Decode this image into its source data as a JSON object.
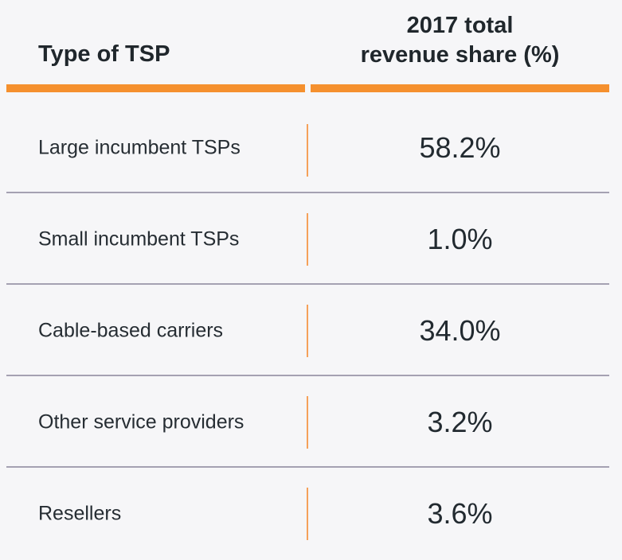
{
  "header": {
    "col1": "Type of TSP",
    "col2_line1": "2017 total",
    "col2_line2": "revenue share (%)"
  },
  "rows": [
    {
      "label": "Large incumbent TSPs",
      "value": "58.2%"
    },
    {
      "label": "Small incumbent TSPs",
      "value": "1.0%"
    },
    {
      "label": "Cable-based carriers",
      "value": "34.0%"
    },
    {
      "label": "Other service providers",
      "value": "3.2%"
    },
    {
      "label": "Resellers",
      "value": "3.6%"
    }
  ],
  "colors": {
    "accent": "#f5902e",
    "separator": "#a5a1b2",
    "background": "#f6f6f8"
  }
}
